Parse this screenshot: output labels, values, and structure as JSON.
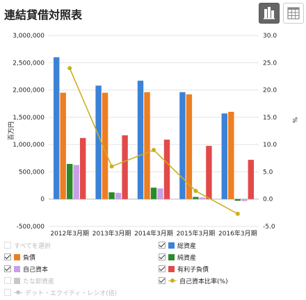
{
  "header": {
    "title": "連結貸借対照表"
  },
  "colors": {
    "total_assets": "#3c82d6",
    "liabilities": "#ee7e22",
    "net_assets": "#2a8a2a",
    "equity": "#c9a0e8",
    "inventory": "#c8c8c8",
    "interest_debt": "#e24a4a",
    "equity_ratio": "#c9b020",
    "de_ratio": "#c8c8c8"
  },
  "chart_data": {
    "type": "bar",
    "categories": [
      "2012年3月期",
      "2013年3月期",
      "2014年3月期",
      "2015年3月期",
      "2016年3月期"
    ],
    "ylabel": "百万円",
    "y2label": "%",
    "ylim": [
      -500000,
      3000000
    ],
    "y2lim": [
      -5.0,
      30.0
    ],
    "yticks": [
      "3,000,000",
      "2,500,000",
      "2,000,000",
      "1,500,000",
      "1,000,000",
      "500,000",
      "0",
      "-500,000"
    ],
    "y2ticks": [
      "30.0",
      "25.0",
      "20.0",
      "15.0",
      "10.0",
      "5.0",
      "0.0",
      "-5.0"
    ],
    "grid": true,
    "series": [
      {
        "name": "総資産",
        "key": "total_assets",
        "values": [
          2600000,
          2080000,
          2170000,
          1960000,
          1570000
        ]
      },
      {
        "name": "負債",
        "key": "liabilities",
        "values": [
          1950000,
          1950000,
          1960000,
          1920000,
          1600000
        ]
      },
      {
        "name": "純資産",
        "key": "net_assets",
        "values": [
          645000,
          125000,
          210000,
          40000,
          -30000
        ]
      },
      {
        "name": "自己資本",
        "key": "equity",
        "values": [
          625000,
          115000,
          195000,
          30000,
          -35000
        ]
      },
      {
        "name": "有利子負債",
        "key": "interest_debt",
        "values": [
          1120000,
          1170000,
          1090000,
          975000,
          720000
        ]
      }
    ],
    "line_series": [
      {
        "name": "自己資本比率(%)",
        "key": "equity_ratio",
        "axis": "right",
        "values": [
          24.0,
          6.0,
          9.0,
          1.5,
          -2.7
        ]
      }
    ]
  },
  "legend": [
    {
      "label": "すべてを選択",
      "checked": false,
      "disabled": true,
      "marker": "none",
      "color_key": ""
    },
    {
      "label": "総資産",
      "checked": true,
      "disabled": false,
      "marker": "box",
      "color_key": "total_assets"
    },
    {
      "label": "負債",
      "checked": true,
      "disabled": false,
      "marker": "box",
      "color_key": "liabilities"
    },
    {
      "label": "純資産",
      "checked": true,
      "disabled": false,
      "marker": "box",
      "color_key": "net_assets"
    },
    {
      "label": "自己資本",
      "checked": true,
      "disabled": false,
      "marker": "box",
      "color_key": "equity"
    },
    {
      "label": "有利子負債",
      "checked": true,
      "disabled": false,
      "marker": "box",
      "color_key": "interest_debt"
    },
    {
      "label": "たな卸資産",
      "checked": false,
      "disabled": true,
      "marker": "box",
      "color_key": "inventory"
    },
    {
      "label": "自己資本比率(%)",
      "checked": true,
      "disabled": false,
      "marker": "line",
      "color_key": "equity_ratio"
    },
    {
      "label": "デット・エクイティ・レシオ(倍)",
      "checked": false,
      "disabled": true,
      "marker": "line",
      "color_key": "de_ratio"
    }
  ]
}
